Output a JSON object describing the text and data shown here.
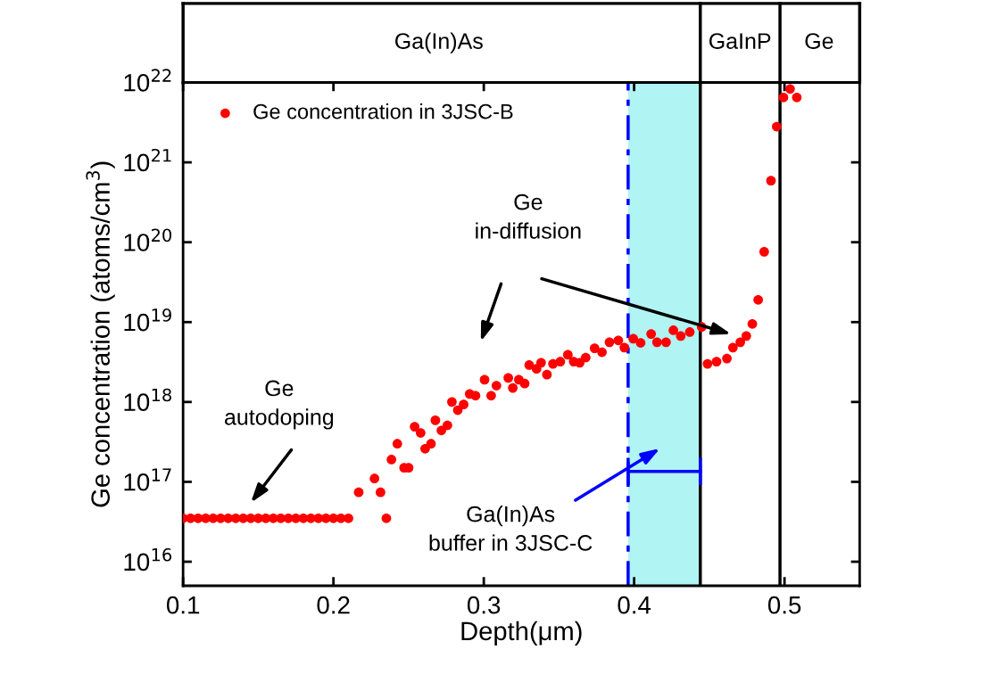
{
  "chart_data": {
    "type": "scatter",
    "xlabel": "Depth(μm)",
    "ylabel": "Ge concentration (atoms/cm$^{3}$)",
    "log": "y",
    "xlim": [
      0.1,
      0.55
    ],
    "xticks": [
      0.1,
      0.2,
      0.3,
      0.4,
      0.5
    ],
    "ylim": [
      5000000000000000.0,
      1e+22
    ],
    "yticks": [
      {
        "value": 1e+16,
        "label": "10$^{16}$"
      },
      {
        "value": 1e+17,
        "label": "10$^{17}$"
      },
      {
        "value": 1e+18,
        "label": "10$^{18}$"
      },
      {
        "value": 1e+19,
        "label": "10$^{19}$"
      },
      {
        "value": 1e+20,
        "label": "10$^{20}$"
      },
      {
        "value": 1e+21,
        "label": "10$^{21}$"
      },
      {
        "value": 1e+22,
        "label": "10$^{22}$"
      }
    ],
    "grid": false,
    "legend": "top left",
    "marker": "circle",
    "series": [
      {
        "name": "Ge concentration in 3JSC-B",
        "color": "#ff0000",
        "x": [
          0.1,
          0.105,
          0.11,
          0.115,
          0.12,
          0.125,
          0.13,
          0.135,
          0.14,
          0.145,
          0.15,
          0.155,
          0.16,
          0.165,
          0.17,
          0.175,
          0.18,
          0.185,
          0.19,
          0.195,
          0.2,
          0.205,
          0.21,
          0.2168,
          0.2273,
          0.2313,
          0.2352,
          0.2386,
          0.2425,
          0.247,
          0.25,
          0.254,
          0.258,
          0.261,
          0.2649,
          0.2678,
          0.2718,
          0.2758,
          0.2788,
          0.2827,
          0.2866,
          0.2906,
          0.2945,
          0.3005,
          0.3049,
          0.3084,
          0.3163,
          0.3193,
          0.3233,
          0.3272,
          0.3302,
          0.3351,
          0.3381,
          0.342,
          0.346,
          0.3509,
          0.3559,
          0.3598,
          0.3638,
          0.3678,
          0.3737,
          0.3786,
          0.3836,
          0.3895,
          0.3935,
          0.3994,
          0.4043,
          0.4113,
          0.4152,
          0.4212,
          0.4261,
          0.431,
          0.437,
          0.4449,
          0.4488,
          0.4548,
          0.4617,
          0.4657,
          0.4706,
          0.4746,
          0.4786,
          0.4825,
          0.4865,
          0.491,
          0.4948,
          0.4993,
          0.5037,
          0.5082
        ],
        "values": [
          3.5e+16,
          3.5e+16,
          3.5e+16,
          3.5e+16,
          3.5e+16,
          3.5e+16,
          3.5e+16,
          3.5e+16,
          3.5e+16,
          3.5e+16,
          3.5e+16,
          3.5e+16,
          3.5e+16,
          3.5e+16,
          3.5e+16,
          3.5e+16,
          3.5e+16,
          3.5e+16,
          3.5e+16,
          3.5e+16,
          3.5e+16,
          3.5e+16,
          3.5e+16,
          7.4e+16,
          1.1e+17,
          7.4e+16,
          3.5e+16,
          1.9e+17,
          3e+17,
          1.5e+17,
          1.5e+17,
          4.9e+17,
          4.1e+17,
          2.6e+17,
          3e+17,
          5.9e+17,
          4.4e+17,
          5.1e+17,
          1e+18,
          7.9e+17,
          9.3e+17,
          1.26e+18,
          1.2e+18,
          1.9e+18,
          1.2e+18,
          1.6e+18,
          2e+18,
          1.5e+18,
          1.9e+18,
          1.7e+18,
          2.9e+18,
          2.6e+18,
          3.1e+18,
          2.2e+18,
          3e+18,
          3.2e+18,
          3.9e+18,
          3.2e+18,
          3.1e+18,
          3.6e+18,
          4.7e+18,
          4.2e+18,
          5.6e+18,
          5.9e+18,
          4.8e+18,
          6.2e+18,
          5.5e+18,
          7.1e+18,
          5.6e+18,
          5.6e+18,
          7.9e+18,
          6.7e+18,
          7.5e+18,
          8.7e+18,
          3e+18,
          3.2e+18,
          3.5e+18,
          4.8e+18,
          5.6e+18,
          6.7e+18,
          9.5e+18,
          1.9e+19,
          7.6e+19,
          5.9e+20,
          2.8e+21,
          6.5e+21,
          8.3e+21,
          6.5e+21
        ]
      },
      {
        "type": "line",
        "marker": "none",
        "color": "#0000ff",
        "x": [
          0.396,
          0.444
        ],
        "values": [
          1.35e+17,
          1.35e+17
        ]
      }
    ],
    "ref_lines": [
      {
        "axis": "x",
        "value": 0.396,
        "color": "#0000ff",
        "line_style": "dashed"
      },
      {
        "axis": "x",
        "value": 0.444,
        "color": "#000000",
        "line_style": "solid"
      },
      {
        "axis": "x",
        "value": 0.497,
        "color": "#000000",
        "line_style": "solid"
      }
    ],
    "bands": [
      {
        "axis": "x",
        "from": 0.396,
        "to": 0.444,
        "color": "#b0f4f4"
      }
    ],
    "annotations": [
      "Ge\nautodoping",
      "Ge\nin-diffusion",
      "Ga(In)As\nbuffer in 3JSC-C",
      "Ga(In)As",
      "GaInP",
      "Ge"
    ]
  }
}
